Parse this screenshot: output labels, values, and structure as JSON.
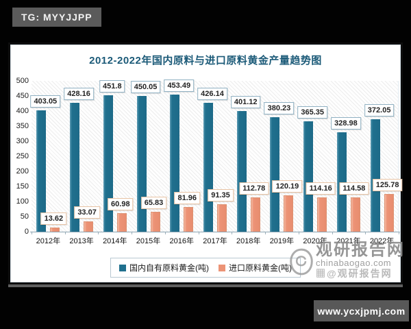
{
  "badges": {
    "telegram_label": "TG: MYYJJPP",
    "website_label": "www.ycxjpmj.com"
  },
  "watermark": {
    "brand": "观研报告网",
    "domain": "chinabaogao.com",
    "social": "@观研报告网",
    "logo": "eye-icon"
  },
  "colors": {
    "domestic_bar": "#20708e",
    "import_bar": "#ec9376",
    "title_text": "#1b5a78",
    "badge_bg": "#5b5b5b",
    "panel_bg": "#ffffff",
    "page_bg": "#020202"
  },
  "chart_data": {
    "type": "bar",
    "title": "2012-2022年国内原料与进口原料黄金产量趋势图",
    "categories": [
      "2012年",
      "2013年",
      "2014年",
      "2015年",
      "2016年",
      "2017年",
      "2018年",
      "2019年",
      "2020年",
      "2021年",
      "2022年"
    ],
    "series": [
      {
        "name": "国内自有原料黄金(吨)",
        "color": "#20708e",
        "values": [
          403.05,
          428.16,
          451.8,
          450.05,
          453.49,
          426.14,
          401.12,
          380.23,
          365.35,
          328.98,
          372.05
        ]
      },
      {
        "name": "进口原料黄金(吨)",
        "color": "#ec9376",
        "values": [
          13.62,
          33.07,
          60.98,
          65.83,
          81.96,
          91.35,
          112.78,
          120.19,
          114.16,
          114.58,
          125.78
        ]
      }
    ],
    "xlabel": "",
    "ylabel": "",
    "ylim": [
      0,
      500
    ],
    "yticks": [
      0,
      50,
      100,
      150,
      200,
      250,
      300,
      350,
      400,
      450,
      500
    ],
    "grid": false,
    "data_labels": true,
    "legend_position": "bottom",
    "plot_background": "diagonal-hatch"
  }
}
